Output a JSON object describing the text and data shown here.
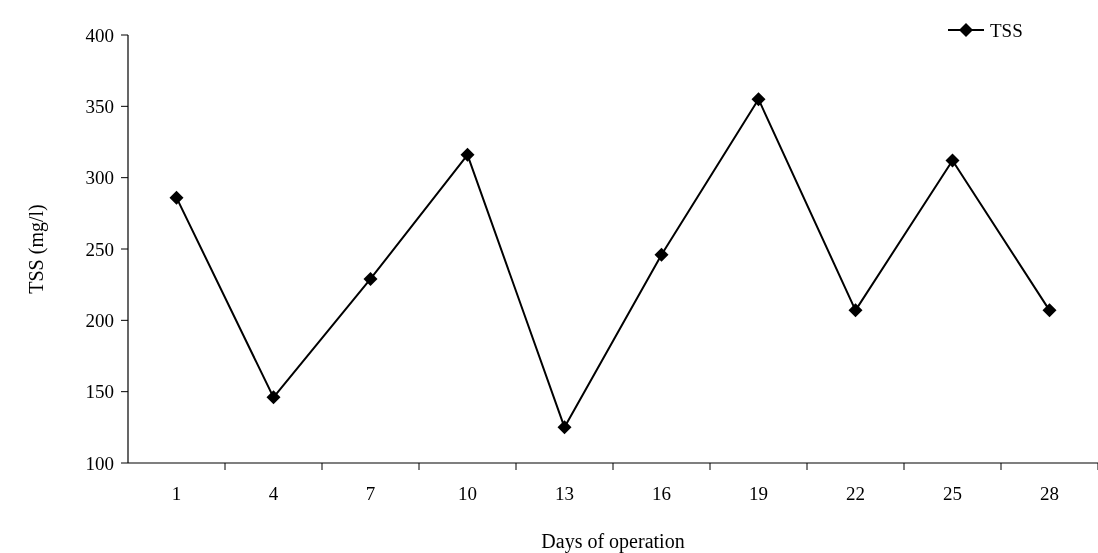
{
  "chart_data": {
    "type": "line",
    "xlabel": "Days of operation",
    "ylabel": "TSS (mg/l)",
    "categories": [
      "1",
      "4",
      "7",
      "10",
      "13",
      "16",
      "19",
      "22",
      "25",
      "28"
    ],
    "series": [
      {
        "name": "TSS",
        "color": "#000000",
        "values": [
          286,
          146,
          229,
          316,
          125,
          246,
          355,
          207,
          312,
          207
        ]
      }
    ],
    "ylim": [
      100,
      400
    ],
    "yticks": [
      100,
      150,
      200,
      250,
      300,
      350,
      400
    ],
    "legend": "top right",
    "marker": "diamond",
    "line_style": "solid"
  }
}
